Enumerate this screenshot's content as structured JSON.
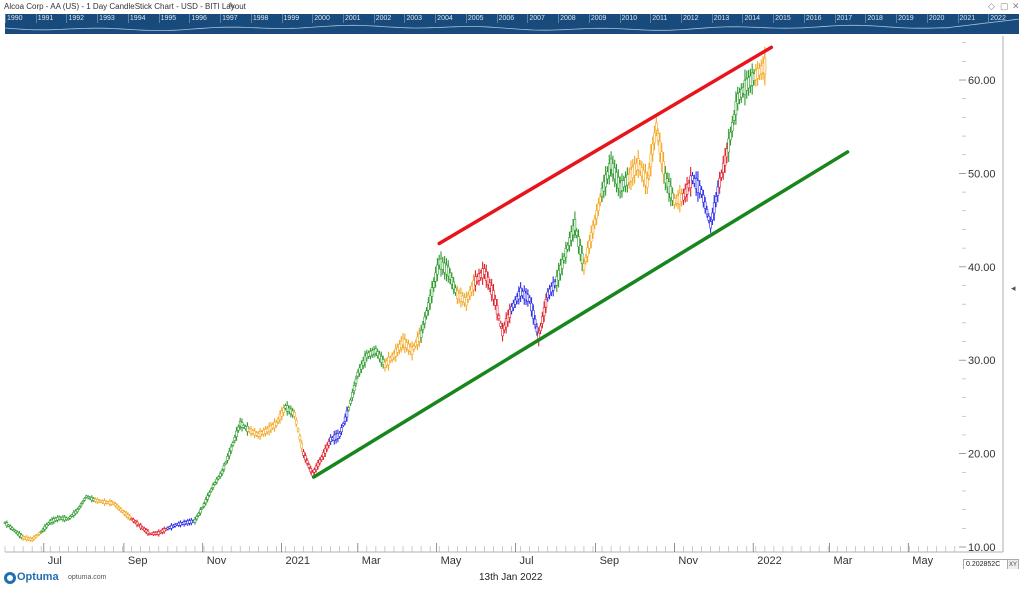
{
  "title": "Alcoa Corp - AA (US) - 1 Day CandleStick Chart - USD - BITI Layout",
  "overview_years": [
    "1990",
    "1991",
    "1992",
    "1993",
    "1994",
    "1995",
    "1996",
    "1997",
    "1998",
    "1999",
    "2000",
    "2001",
    "2002",
    "2003",
    "2004",
    "2005",
    "2006",
    "2007",
    "2008",
    "2009",
    "2010",
    "2011",
    "2012",
    "2013",
    "2014",
    "2015",
    "2016",
    "2017",
    "2018",
    "2019",
    "2020",
    "2021",
    "2022"
  ],
  "footer": {
    "logo": "Optuma",
    "url": "optuma.com",
    "date": "13th Jan 2022",
    "value_box": "0.202852C",
    "value_tag": "XY"
  },
  "icons": {
    "edit": "pencil-icon",
    "logo": "optuma-logo-icon",
    "side": "collapse-arrow-icon"
  },
  "colors": {
    "resistance": "#e8141b",
    "support": "#17861c",
    "bar_green": "#2e9b2e",
    "bar_orange": "#f4a623",
    "bar_red": "#e0202a",
    "bar_blue": "#2a2ae6",
    "overview_bg": "#184a7c"
  },
  "chart_data": {
    "type": "candlestick",
    "title": "Alcoa Corp - AA (US) - 1 Day CandleStick Chart - USD - BITI Layout",
    "x_tick_labels": [
      "Jul",
      "Sep",
      "Nov",
      "2021",
      "Mar",
      "May",
      "Jul",
      "Sep",
      "Nov",
      "2022",
      "Mar",
      "May"
    ],
    "y_tick_labels": [
      "10.00",
      "20.00",
      "30.00",
      "40.00",
      "50.00",
      "60.00"
    ],
    "y_ticks": [
      10,
      20,
      30,
      40,
      50,
      60
    ],
    "ylim": [
      10,
      64.5
    ],
    "xlim": [
      "2020-06-01",
      "2022-06-10"
    ],
    "grid": false,
    "y_axis_side": "right",
    "series": [
      {
        "x": "2020-06-01",
        "y": 12.6,
        "color": "green"
      },
      {
        "x": "2020-06-08",
        "y": 11.8,
        "color": "green"
      },
      {
        "x": "2020-06-15",
        "y": 11.0,
        "color": "orange"
      },
      {
        "x": "2020-06-22",
        "y": 10.8,
        "color": "orange"
      },
      {
        "x": "2020-06-29",
        "y": 11.6,
        "color": "green"
      },
      {
        "x": "2020-07-06",
        "y": 12.7,
        "color": "green"
      },
      {
        "x": "2020-07-13",
        "y": 13.1,
        "color": "green"
      },
      {
        "x": "2020-07-20",
        "y": 13.0,
        "color": "green"
      },
      {
        "x": "2020-07-27",
        "y": 13.9,
        "color": "green"
      },
      {
        "x": "2020-08-03",
        "y": 15.4,
        "color": "green"
      },
      {
        "x": "2020-08-10",
        "y": 15.0,
        "color": "orange"
      },
      {
        "x": "2020-08-17",
        "y": 14.8,
        "color": "orange"
      },
      {
        "x": "2020-08-24",
        "y": 14.7,
        "color": "orange"
      },
      {
        "x": "2020-08-31",
        "y": 13.8,
        "color": "orange"
      },
      {
        "x": "2020-09-07",
        "y": 13.0,
        "color": "red"
      },
      {
        "x": "2020-09-14",
        "y": 12.2,
        "color": "red"
      },
      {
        "x": "2020-09-21",
        "y": 11.4,
        "color": "red"
      },
      {
        "x": "2020-09-28",
        "y": 11.5,
        "color": "red"
      },
      {
        "x": "2020-10-05",
        "y": 12.0,
        "color": "blue"
      },
      {
        "x": "2020-10-12",
        "y": 12.4,
        "color": "blue"
      },
      {
        "x": "2020-10-19",
        "y": 12.6,
        "color": "blue"
      },
      {
        "x": "2020-10-26",
        "y": 12.8,
        "color": "green"
      },
      {
        "x": "2020-11-02",
        "y": 14.5,
        "color": "green"
      },
      {
        "x": "2020-11-09",
        "y": 16.5,
        "color": "green"
      },
      {
        "x": "2020-11-16",
        "y": 18.0,
        "color": "green"
      },
      {
        "x": "2020-11-23",
        "y": 20.5,
        "color": "green"
      },
      {
        "x": "2020-11-30",
        "y": 23.2,
        "color": "green"
      },
      {
        "x": "2020-12-07",
        "y": 22.5,
        "color": "orange"
      },
      {
        "x": "2020-12-14",
        "y": 22.0,
        "color": "orange"
      },
      {
        "x": "2020-12-21",
        "y": 22.5,
        "color": "orange"
      },
      {
        "x": "2020-12-28",
        "y": 23.2,
        "color": "orange"
      },
      {
        "x": "2021-01-04",
        "y": 25.0,
        "color": "green"
      },
      {
        "x": "2021-01-11",
        "y": 24.2,
        "color": "orange"
      },
      {
        "x": "2021-01-18",
        "y": 20.0,
        "color": "red"
      },
      {
        "x": "2021-01-25",
        "y": 17.8,
        "color": "red"
      },
      {
        "x": "2021-02-01",
        "y": 19.5,
        "color": "red"
      },
      {
        "x": "2021-02-08",
        "y": 21.5,
        "color": "blue"
      },
      {
        "x": "2021-02-15",
        "y": 22.0,
        "color": "blue"
      },
      {
        "x": "2021-02-22",
        "y": 24.8,
        "color": "green"
      },
      {
        "x": "2021-03-01",
        "y": 28.5,
        "color": "green"
      },
      {
        "x": "2021-03-08",
        "y": 30.5,
        "color": "green"
      },
      {
        "x": "2021-03-15",
        "y": 31.0,
        "color": "green"
      },
      {
        "x": "2021-03-22",
        "y": 29.5,
        "color": "orange"
      },
      {
        "x": "2021-03-29",
        "y": 30.5,
        "color": "orange"
      },
      {
        "x": "2021-04-05",
        "y": 32.0,
        "color": "orange"
      },
      {
        "x": "2021-04-12",
        "y": 31.0,
        "color": "orange"
      },
      {
        "x": "2021-04-19",
        "y": 32.8,
        "color": "green"
      },
      {
        "x": "2021-04-26",
        "y": 36.5,
        "color": "green"
      },
      {
        "x": "2021-05-03",
        "y": 40.5,
        "color": "green"
      },
      {
        "x": "2021-05-10",
        "y": 39.5,
        "color": "green"
      },
      {
        "x": "2021-05-17",
        "y": 37.0,
        "color": "orange"
      },
      {
        "x": "2021-05-24",
        "y": 36.3,
        "color": "orange"
      },
      {
        "x": "2021-05-31",
        "y": 38.5,
        "color": "red"
      },
      {
        "x": "2021-06-07",
        "y": 39.5,
        "color": "red"
      },
      {
        "x": "2021-06-14",
        "y": 37.0,
        "color": "red"
      },
      {
        "x": "2021-06-21",
        "y": 33.0,
        "color": "red"
      },
      {
        "x": "2021-06-28",
        "y": 35.5,
        "color": "blue"
      },
      {
        "x": "2021-07-05",
        "y": 37.3,
        "color": "blue"
      },
      {
        "x": "2021-07-12",
        "y": 36.5,
        "color": "blue"
      },
      {
        "x": "2021-07-19",
        "y": 32.5,
        "color": "red"
      },
      {
        "x": "2021-07-26",
        "y": 37.0,
        "color": "blue"
      },
      {
        "x": "2021-08-02",
        "y": 38.5,
        "color": "green"
      },
      {
        "x": "2021-08-09",
        "y": 41.5,
        "color": "green"
      },
      {
        "x": "2021-08-16",
        "y": 44.5,
        "color": "green"
      },
      {
        "x": "2021-08-23",
        "y": 40.0,
        "color": "orange"
      },
      {
        "x": "2021-08-30",
        "y": 44.0,
        "color": "orange"
      },
      {
        "x": "2021-09-06",
        "y": 48.0,
        "color": "green"
      },
      {
        "x": "2021-09-13",
        "y": 51.0,
        "color": "green"
      },
      {
        "x": "2021-09-20",
        "y": 48.5,
        "color": "green"
      },
      {
        "x": "2021-09-27",
        "y": 49.5,
        "color": "orange"
      },
      {
        "x": "2021-10-04",
        "y": 51.0,
        "color": "orange"
      },
      {
        "x": "2021-10-11",
        "y": 49.0,
        "color": "orange"
      },
      {
        "x": "2021-10-18",
        "y": 55.0,
        "color": "orange"
      },
      {
        "x": "2021-10-25",
        "y": 49.5,
        "color": "green"
      },
      {
        "x": "2021-11-01",
        "y": 47.0,
        "color": "orange"
      },
      {
        "x": "2021-11-08",
        "y": 47.5,
        "color": "red"
      },
      {
        "x": "2021-11-15",
        "y": 49.5,
        "color": "blue"
      },
      {
        "x": "2021-11-22",
        "y": 48.0,
        "color": "blue"
      },
      {
        "x": "2021-11-29",
        "y": 44.5,
        "color": "blue"
      },
      {
        "x": "2021-12-06",
        "y": 49.0,
        "color": "red"
      },
      {
        "x": "2021-12-13",
        "y": 53.0,
        "color": "green"
      },
      {
        "x": "2021-12-20",
        "y": 58.0,
        "color": "green"
      },
      {
        "x": "2021-12-27",
        "y": 59.5,
        "color": "green"
      },
      {
        "x": "2022-01-03",
        "y": 60.5,
        "color": "orange"
      },
      {
        "x": "2022-01-10",
        "y": 61.5,
        "color": "orange"
      }
    ],
    "trendlines": [
      {
        "color": "red",
        "x0": "2021-05-03",
        "y0": 42.5,
        "x1": "2022-01-15",
        "y1": 63.5
      },
      {
        "color": "green",
        "x0": "2021-01-26",
        "y0": 17.5,
        "x1": "2022-03-15",
        "y1": 52.3
      }
    ]
  }
}
